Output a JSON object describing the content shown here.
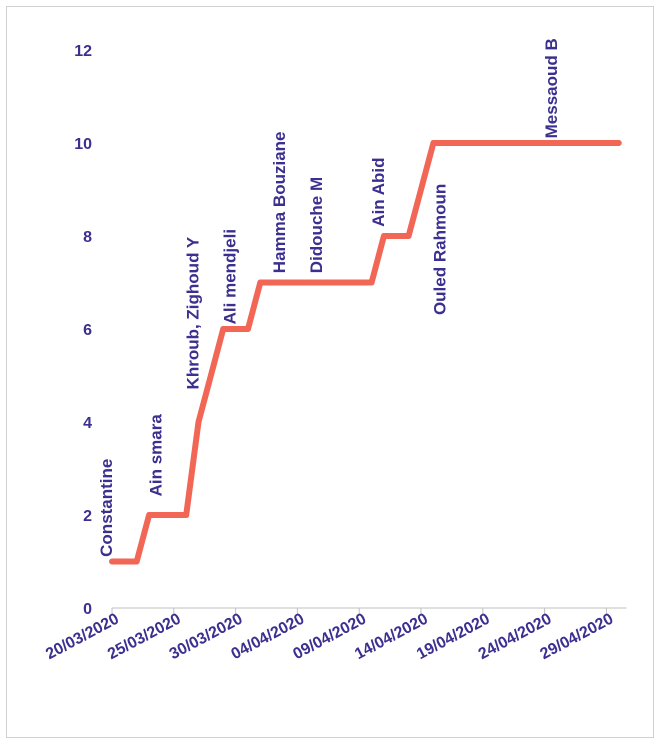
{
  "chart_data": {
    "type": "line",
    "title": "",
    "xlabel": "",
    "ylabel": "",
    "ylim": [
      0,
      12
    ],
    "yticks": [
      "0",
      "2",
      "4",
      "6",
      "8",
      "10",
      "12"
    ],
    "xticks": [
      "20/03/2020",
      "25/03/2020",
      "30/03/2020",
      "04/04/2020",
      "09/04/2020",
      "14/04/2020",
      "19/04/2020",
      "24/04/2020",
      "29/04/2020"
    ],
    "x_start": "20/03/2020",
    "line_color": "#f26656",
    "text_color": "#3b2f8f",
    "grid": false,
    "series": [
      {
        "x": [
          "20/03/2020",
          "22/03/2020",
          "23/03/2020",
          "26/03/2020",
          "27/03/2020",
          "28/03/2020",
          "29/03/2020",
          "31/03/2020",
          "01/04/2020",
          "02/04/2020",
          "10/04/2020",
          "11/04/2020",
          "13/04/2020",
          "15/04/2020",
          "30/04/2020"
        ],
        "values": [
          1,
          1,
          2,
          2,
          4,
          5,
          6,
          6,
          7,
          7,
          7,
          8,
          8,
          10,
          10
        ]
      }
    ],
    "annotations": [
      {
        "text": "Constantine",
        "x": "20/03/2020",
        "y": 1.1
      },
      {
        "text": "Ain smara",
        "x": "24/03/2020",
        "y": 2.4
      },
      {
        "text": "Khroub, Zighoud Y",
        "x": "27/03/2020",
        "y": 4.7
      },
      {
        "text": "Ali mendjeli",
        "x": "30/03/2020",
        "y": 6.1
      },
      {
        "text": "Hamma Bouziane",
        "x": "03/04/2020",
        "y": 7.2
      },
      {
        "text": "Didouche M",
        "x": "06/04/2020",
        "y": 7.2
      },
      {
        "text": "Ain Abid",
        "x": "11/04/2020",
        "y": 8.2
      },
      {
        "text": "Ouled Rahmoun",
        "x": "16/04/2020",
        "y": 6.3
      },
      {
        "text": "Messaoud B",
        "x": "25/04/2020",
        "y": 10.1
      }
    ]
  }
}
